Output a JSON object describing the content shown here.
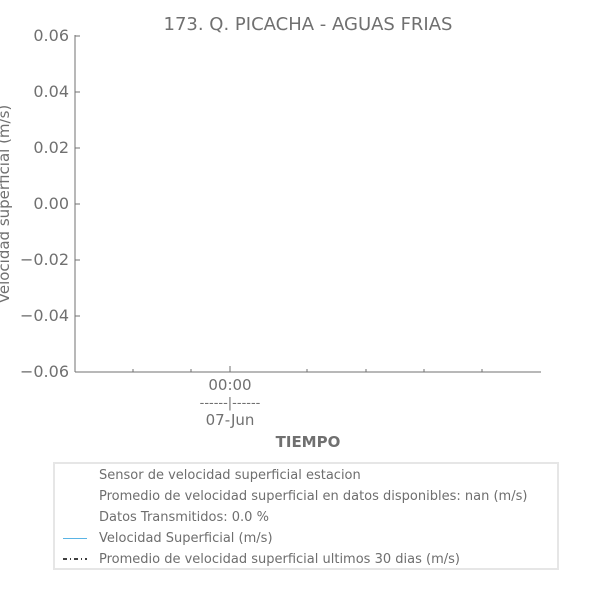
{
  "chart_data": {
    "type": "line",
    "title": "173. Q. PICACHA - AGUAS FRIAS",
    "xlabel": "TIEMPO",
    "ylabel": "Velocidad superficial (m/s)",
    "ylim": [
      -0.06,
      0.06
    ],
    "yticks": [
      "0.06",
      "0.04",
      "0.02",
      "0.00",
      "−0.02",
      "−0.04",
      "−0.06"
    ],
    "xtick_main": {
      "line1": "00:00",
      "line2": "------|------",
      "line3": "07-Jun"
    },
    "series": [
      {
        "name": "Velocidad Superficial (m/s)",
        "color": "#5ab4e5",
        "values": []
      },
      {
        "name": "Promedio de velocidad superficial ultimos 30 dias (m/s)",
        "color": "#000000",
        "values": []
      }
    ],
    "legend_placement": "bottom",
    "grid": false
  },
  "legend": {
    "entries": [
      {
        "label": "Sensor de velocidad superficial estacion",
        "swatch": "none",
        "color": ""
      },
      {
        "label": "Promedio de velocidad superficial en datos disponibles: nan (m/s)",
        "swatch": "none",
        "color": ""
      },
      {
        "label": "Datos Transmitidos: 0.0 %",
        "swatch": "none",
        "color": ""
      },
      {
        "label": "Velocidad Superficial (m/s)",
        "swatch": "line",
        "color": "#5ab4e5"
      },
      {
        "label": "Promedio de velocidad superficial ultimos 30 dias (m/s)",
        "swatch": "dashdot",
        "color": "#000000"
      }
    ]
  },
  "colors": {
    "axis": "#707070",
    "text": "#707070",
    "legend_border": "#e6e6e6"
  }
}
